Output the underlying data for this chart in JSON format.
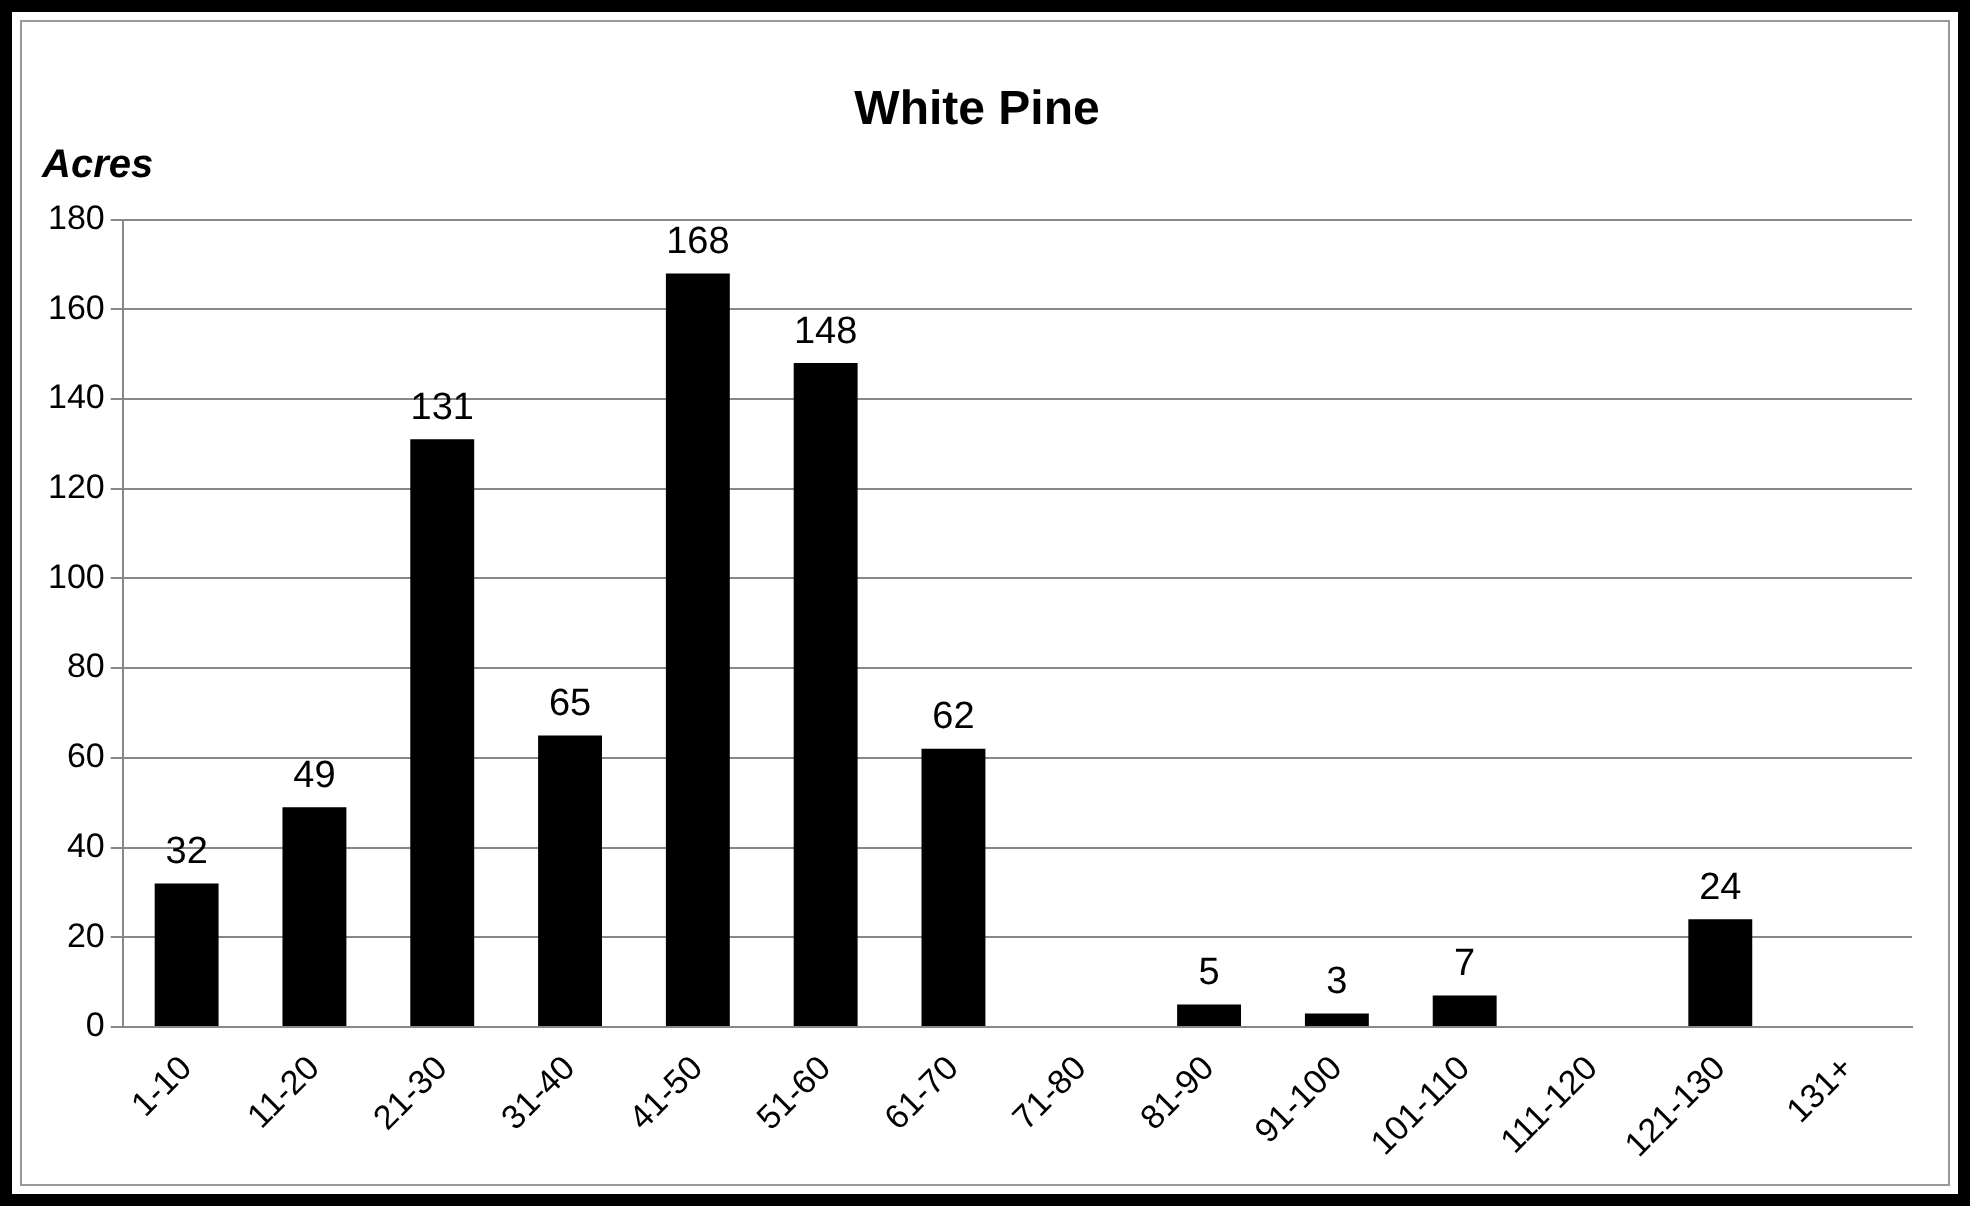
{
  "chart_data": {
    "type": "bar",
    "title": "White Pine",
    "ylabel": "Acres",
    "categories": [
      "1-10",
      "11-20",
      "21-30",
      "31-40",
      "41-50",
      "51-60",
      "61-70",
      "71-80",
      "81-90",
      "91-100",
      "101-110",
      "111-120",
      "121-130",
      "131+"
    ],
    "values": [
      32,
      49,
      131,
      65,
      168,
      148,
      62,
      null,
      5,
      3,
      7,
      null,
      24,
      null
    ],
    "color": "#000000",
    "ylim": [
      0,
      180
    ],
    "yticks": [
      0,
      20,
      40,
      60,
      80,
      100,
      120,
      140,
      160,
      180
    ],
    "grid": "y",
    "data_labels": true,
    "legend": false
  }
}
